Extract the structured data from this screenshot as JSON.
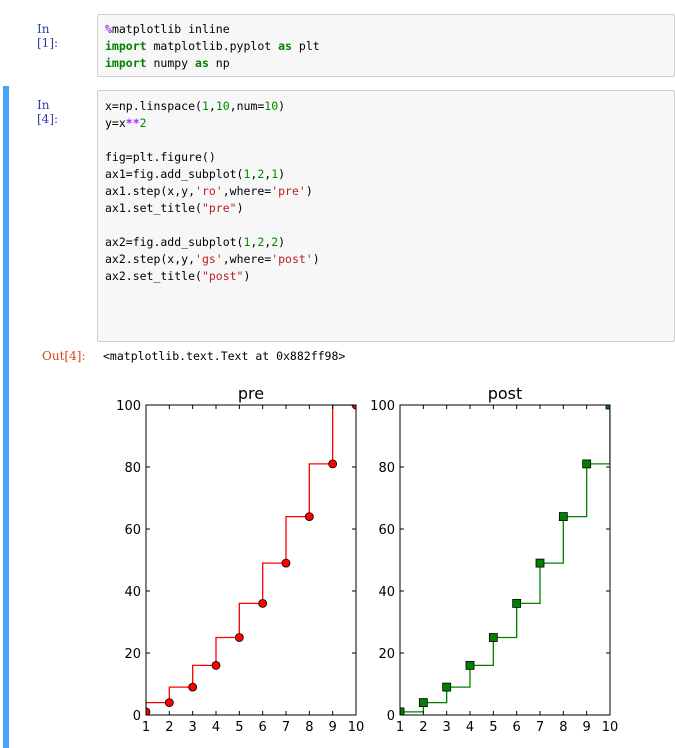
{
  "cell1": {
    "prompt": "In  [1]:",
    "lines": [
      {
        "magic": "%",
        "rest": "matplotlib inline"
      },
      {
        "kw1": "import",
        "mid": " matplotlib.pyplot ",
        "kw2": "as",
        "end": " plt"
      },
      {
        "kw1": "import",
        "mid": " numpy ",
        "kw2": "as",
        "end": " np"
      }
    ]
  },
  "cell2": {
    "prompt": "In  [4]:",
    "code": {
      "l1a": "x=np.linspace(",
      "l1b": "1",
      "l1c": ",",
      "l1d": "10",
      "l1e": ",num=",
      "l1f": "10",
      "l1g": ")",
      "l2a": "y=x",
      "l2b": "**",
      "l2c": "2",
      "l4": "fig=plt.figure()",
      "l5a": "ax1=fig.add_subplot(",
      "l5b": "1",
      "l5c": ",",
      "l5d": "2",
      "l5e": ",",
      "l5f": "1",
      "l5g": ")",
      "l6a": "ax1.step(x,y,",
      "l6b": "'ro'",
      "l6c": ",where=",
      "l6d": "'pre'",
      "l6e": ")",
      "l7a": "ax1.set_title(",
      "l7b": "\"pre\"",
      "l7c": ")",
      "l9a": "ax2=fig.add_subplot(",
      "l9b": "1",
      "l9c": ",",
      "l9d": "2",
      "l9e": ",",
      "l9f": "2",
      "l9g": ")",
      "l10a": "ax2.step(x,y,",
      "l10b": "'gs'",
      "l10c": ",where=",
      "l10d": "'post'",
      "l10e": ")",
      "l11a": "ax2.set_title(",
      "l11b": "\"post\"",
      "l11c": ")"
    },
    "out_prompt": "Out[4]:",
    "out_text": "<matplotlib.text.Text at 0x882ff98>"
  },
  "colors": {
    "accent": "#42a5f5",
    "red": "#ff0000",
    "green": "#008000"
  },
  "chart_data": [
    {
      "type": "line",
      "title": "pre",
      "step_where": "pre",
      "marker": "circle",
      "color": "#ff0000",
      "x": [
        1,
        2,
        3,
        4,
        5,
        6,
        7,
        8,
        9,
        10
      ],
      "y": [
        1,
        4,
        9,
        16,
        25,
        36,
        49,
        64,
        81,
        100
      ],
      "xlim": [
        1,
        10
      ],
      "ylim": [
        0,
        100
      ],
      "xticks": [
        "1",
        "2",
        "3",
        "4",
        "5",
        "6",
        "7",
        "8",
        "9",
        "10"
      ],
      "yticks": [
        "0",
        "20",
        "40",
        "60",
        "80",
        "100"
      ],
      "grid": false
    },
    {
      "type": "line",
      "title": "post",
      "step_where": "post",
      "marker": "square",
      "color": "#008000",
      "x": [
        1,
        2,
        3,
        4,
        5,
        6,
        7,
        8,
        9,
        10
      ],
      "y": [
        1,
        4,
        9,
        16,
        25,
        36,
        49,
        64,
        81,
        100
      ],
      "xlim": [
        1,
        10
      ],
      "ylim": [
        0,
        100
      ],
      "xticks": [
        "1",
        "2",
        "3",
        "4",
        "5",
        "6",
        "7",
        "8",
        "9",
        "10"
      ],
      "yticks": [
        "0",
        "20",
        "40",
        "60",
        "80",
        "100"
      ],
      "grid": false
    }
  ]
}
